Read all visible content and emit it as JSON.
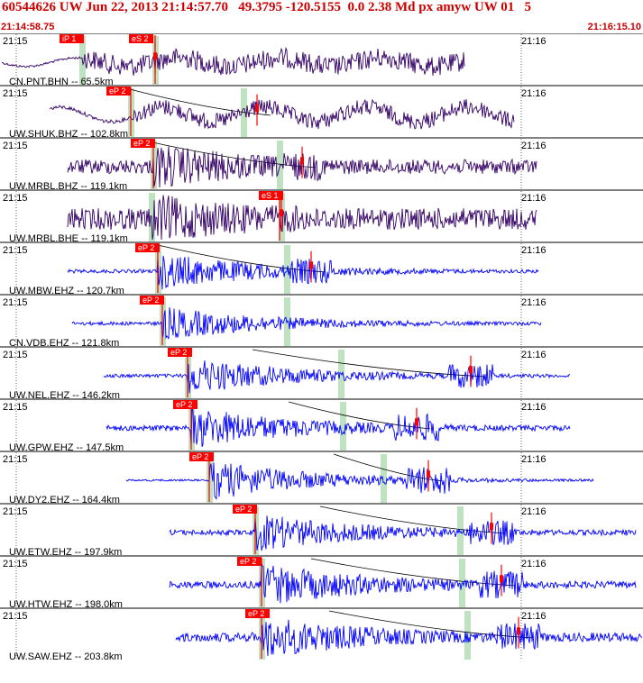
{
  "header": {
    "title": "60544626 UW Jun 22, 2013 21:14:57.70   49.3795 -120.5155  0.0 2.38 Md px amyw UW 01   5",
    "start_time": "21:14:58.75",
    "end_time": "21:16:15.10"
  },
  "colors": {
    "header_text": "#cc0000",
    "trace_horizontal": "#330066",
    "trace_vertical": "#0000ff",
    "pick_marker": "#ff0000",
    "pick_flag": "#ff0000",
    "green_band": "#bfe3c0",
    "gridline": "#000000",
    "travel_curve": "#000000"
  },
  "traces": [
    {
      "station": "CN.PNT.BHN -- 65.5km",
      "t_left": "21:15",
      "t_right": "21:16",
      "picks": [
        "iP 1",
        "eS 2"
      ],
      "component": "horizontal"
    },
    {
      "station": "UW.SHUK.BHZ -- 102.8km",
      "t_left": "21:15",
      "t_right": "21:16",
      "picks": [
        "eP 2"
      ],
      "component": "horizontal"
    },
    {
      "station": "UW.MRBL.BHZ -- 119.1km",
      "t_left": "21:15",
      "t_right": "21:16",
      "picks": [
        "eP 2"
      ],
      "component": "horizontal"
    },
    {
      "station": "UW.MRBL.BHE -- 119.1km",
      "t_left": "21:15",
      "t_right": "21:16",
      "picks": [
        "eS 1"
      ],
      "component": "horizontal"
    },
    {
      "station": "UW.MBW.EHZ -- 120.7km",
      "t_left": "21:15",
      "t_right": "21:16",
      "picks": [
        "eP 2"
      ],
      "component": "vertical"
    },
    {
      "station": "CN.VDB.EHZ -- 121.8km",
      "t_left": "21:15",
      "t_right": "21:16",
      "picks": [
        "eP 2"
      ],
      "component": "vertical"
    },
    {
      "station": "UW.NEL.EHZ -- 146.2km",
      "t_left": "21:15",
      "t_right": "21:16",
      "picks": [
        "eP 2"
      ],
      "component": "vertical"
    },
    {
      "station": "UW.GPW.EHZ -- 147.5km",
      "t_left": "21:15",
      "t_right": "21:16",
      "picks": [
        "eP 2"
      ],
      "component": "vertical"
    },
    {
      "station": "UW.DY2.EHZ -- 164.4km",
      "t_left": "21:15",
      "t_right": "21:16",
      "picks": [
        "eP 2"
      ],
      "component": "vertical"
    },
    {
      "station": "UW.ETW.EHZ -- 197.9km",
      "t_left": "21:15",
      "t_right": "21:16",
      "picks": [
        "eP 2"
      ],
      "component": "vertical"
    },
    {
      "station": "UW.HTW.EHZ -- 198.0km",
      "t_left": "21:15",
      "t_right": "21:16",
      "picks": [
        "eP 2"
      ],
      "component": "vertical"
    },
    {
      "station": "UW.SAW.EHZ -- 203.8km",
      "t_left": "21:15",
      "t_right": "21:16",
      "picks": [
        "eP 2"
      ],
      "component": "vertical"
    }
  ]
}
